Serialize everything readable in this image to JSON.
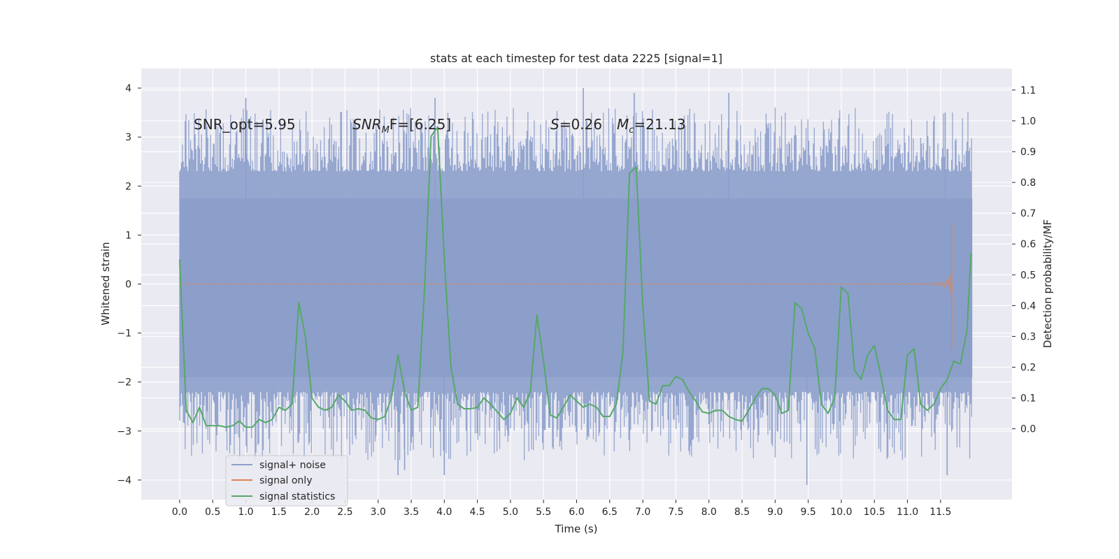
{
  "chart_data": {
    "type": "line",
    "title": "stats at each timestep for test data 2225 [signal=1]",
    "xlabel": "Time (s)",
    "ylabel_left": "Whitened strain",
    "ylabel_right": "Detection probability/MF",
    "xlim": [
      -0.58,
      12.58
    ],
    "ylim_left": [
      -4.4,
      4.4
    ],
    "ylim_right": [
      -0.23,
      1.17
    ],
    "grid": true,
    "x_ticks": [
      0.0,
      0.5,
      1.0,
      1.5,
      2.0,
      2.5,
      3.0,
      3.5,
      4.0,
      4.5,
      5.0,
      5.5,
      6.0,
      6.5,
      7.0,
      7.5,
      8.0,
      8.5,
      9.0,
      9.5,
      10.0,
      10.5,
      11.0,
      11.5
    ],
    "x_tick_labels": [
      "0.0",
      "0.5",
      "1.0",
      "1.5",
      "2.0",
      "2.5",
      "3.0",
      "3.5",
      "4.0",
      "4.5",
      "5.0",
      "5.5",
      "6.0",
      "6.5",
      "7.0",
      "7.5",
      "8.0",
      "8.5",
      "9.0",
      "9.5",
      "10.0",
      "10.5",
      "11.0",
      "11.5"
    ],
    "y_left_ticks": [
      4,
      3,
      2,
      1,
      0,
      -1,
      -2,
      -3,
      -4
    ],
    "y_left_tick_labels": [
      "4",
      "3",
      "2",
      "1",
      "0",
      "−1",
      "−2",
      "−3",
      "−4"
    ],
    "y_right_ticks": [
      1.1,
      1.0,
      0.9,
      0.8,
      0.7,
      0.6,
      0.5,
      0.4,
      0.3,
      0.2,
      0.1,
      0.0
    ],
    "y_right_tick_labels": [
      "1.1",
      "1.0",
      "0.9",
      "0.8",
      "0.7",
      "0.6",
      "0.5",
      "0.4",
      "0.3",
      "0.2",
      "0.1",
      "0.0"
    ],
    "legend": {
      "position": "lower-left",
      "entries": [
        {
          "label": "signal+ noise",
          "color": "#8c9fcb"
        },
        {
          "label": "signal only",
          "color": "#dd8452"
        },
        {
          "label": "signal statistics",
          "color": "#55a868"
        }
      ]
    },
    "annotations": [
      {
        "text": "SNR_opt=5.95",
        "x": 0.2,
        "y": 3.05
      },
      {
        "text": "SNR_MF=[6.25]",
        "x": 2.6,
        "y": 3.05
      },
      {
        "text": "S=0.26",
        "x": 5.6,
        "y": 3.05
      },
      {
        "text": "M_c=21.13",
        "x": 6.6,
        "y": 3.05
      }
    ],
    "series": [
      {
        "name": "signal+ noise",
        "axis": "left",
        "color": "#8c9fcb",
        "x_range": [
          0.0,
          11.98
        ],
        "band": [
          -2.2,
          2.3
        ],
        "envelope_peaks": [
          {
            "x": 1.0,
            "y": 3.8
          },
          {
            "x": 3.86,
            "y": 3.8
          },
          {
            "x": 6.1,
            "y": 4.0
          },
          {
            "x": 6.87,
            "y": 3.9
          },
          {
            "x": 8.3,
            "y": 3.9
          },
          {
            "x": 11.57,
            "y": 3.5
          },
          {
            "x": 3.3,
            "y": -3.9
          },
          {
            "x": 3.4,
            "y": -3.8
          },
          {
            "x": 4.0,
            "y": -3.9
          },
          {
            "x": 9.48,
            "y": -4.1
          },
          {
            "x": 11.6,
            "y": -3.9
          }
        ]
      },
      {
        "name": "signal only",
        "axis": "left",
        "color": "#dd8452",
        "x_range": [
          0.0,
          11.67
        ],
        "peak": {
          "x": 11.67,
          "y_max": 1.25,
          "y_min": -1.35
        }
      },
      {
        "name": "signal statistics",
        "axis": "right",
        "color": "#55a868",
        "x": [
          0.0,
          0.1,
          0.2,
          0.3,
          0.4,
          0.5,
          0.6,
          0.7,
          0.8,
          0.9,
          1.0,
          1.1,
          1.2,
          1.3,
          1.4,
          1.5,
          1.6,
          1.7,
          1.8,
          1.9,
          2.0,
          2.1,
          2.2,
          2.3,
          2.4,
          2.5,
          2.6,
          2.7,
          2.8,
          2.9,
          3.0,
          3.1,
          3.2,
          3.3,
          3.4,
          3.5,
          3.6,
          3.7,
          3.8,
          3.9,
          4.0,
          4.1,
          4.2,
          4.3,
          4.4,
          4.5,
          4.6,
          4.7,
          4.8,
          4.9,
          5.0,
          5.1,
          5.2,
          5.3,
          5.4,
          5.5,
          5.6,
          5.7,
          5.8,
          5.9,
          6.0,
          6.1,
          6.2,
          6.3,
          6.4,
          6.5,
          6.6,
          6.7,
          6.8,
          6.9,
          7.0,
          7.1,
          7.2,
          7.3,
          7.4,
          7.5,
          7.6,
          7.7,
          7.8,
          7.9,
          8.0,
          8.1,
          8.2,
          8.3,
          8.4,
          8.5,
          8.6,
          8.7,
          8.8,
          8.9,
          9.0,
          9.1,
          9.2,
          9.3,
          9.4,
          9.5,
          9.6,
          9.7,
          9.8,
          9.9,
          10.0,
          10.1,
          10.2,
          10.3,
          10.4,
          10.5,
          10.6,
          10.7,
          10.8,
          10.9,
          11.0,
          11.1,
          11.2,
          11.3,
          11.4,
          11.5,
          11.6,
          11.7,
          11.8,
          11.9,
          11.96
        ],
        "values": [
          0.55,
          0.06,
          0.02,
          0.07,
          0.01,
          0.01,
          0.01,
          0.005,
          0.01,
          0.025,
          0.005,
          0.005,
          0.03,
          0.02,
          0.03,
          0.07,
          0.06,
          0.08,
          0.41,
          0.3,
          0.1,
          0.07,
          0.06,
          0.07,
          0.11,
          0.09,
          0.06,
          0.065,
          0.06,
          0.035,
          0.03,
          0.04,
          0.1,
          0.24,
          0.12,
          0.06,
          0.07,
          0.45,
          0.95,
          0.98,
          0.55,
          0.2,
          0.08,
          0.065,
          0.065,
          0.07,
          0.1,
          0.08,
          0.055,
          0.03,
          0.05,
          0.1,
          0.07,
          0.12,
          0.37,
          0.22,
          0.045,
          0.035,
          0.07,
          0.11,
          0.09,
          0.07,
          0.08,
          0.07,
          0.04,
          0.04,
          0.08,
          0.25,
          0.83,
          0.85,
          0.4,
          0.09,
          0.08,
          0.14,
          0.14,
          0.17,
          0.16,
          0.12,
          0.09,
          0.055,
          0.05,
          0.06,
          0.06,
          0.04,
          0.03,
          0.025,
          0.06,
          0.1,
          0.13,
          0.13,
          0.11,
          0.05,
          0.06,
          0.41,
          0.39,
          0.31,
          0.26,
          0.08,
          0.05,
          0.1,
          0.46,
          0.44,
          0.19,
          0.16,
          0.24,
          0.27,
          0.17,
          0.06,
          0.03,
          0.03,
          0.24,
          0.26,
          0.08,
          0.06,
          0.08,
          0.13,
          0.16,
          0.22,
          0.21,
          0.32,
          0.57
        ]
      }
    ]
  }
}
